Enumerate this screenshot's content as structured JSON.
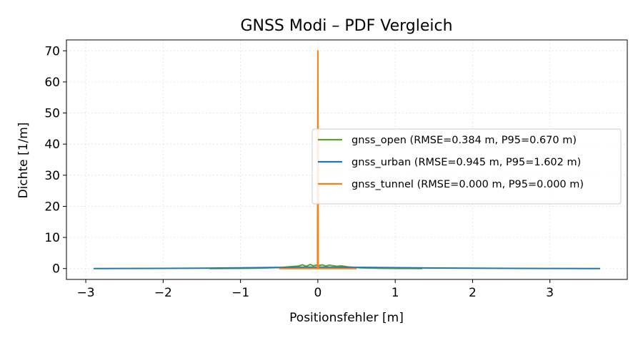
{
  "chart_data": {
    "type": "line",
    "title": "GNSS Modi – PDF Vergleich",
    "xlabel": "Positionsfehler [m]",
    "ylabel": "Dichte [1/m]",
    "xlim": [
      -3.25,
      4.0
    ],
    "ylim": [
      -3.5,
      73.5
    ],
    "xticks": [
      -3,
      -2,
      -1,
      0,
      1,
      2,
      3
    ],
    "xtick_labels": [
      "−3",
      "−2",
      "−1",
      "0",
      "1",
      "2",
      "3"
    ],
    "yticks": [
      0,
      10,
      20,
      30,
      40,
      50,
      60,
      70
    ],
    "ytick_labels": [
      "0",
      "10",
      "20",
      "30",
      "40",
      "50",
      "60",
      "70"
    ],
    "grid": true,
    "legend_position": "center-right",
    "series": [
      {
        "name": "gnss_open (RMSE=0.384 m, P95=0.670 m)",
        "color": "#5ba02a",
        "x": [
          -1.4,
          -1.2,
          -1.0,
          -0.8,
          -0.6,
          -0.45,
          -0.35,
          -0.25,
          -0.2,
          -0.15,
          -0.1,
          -0.06,
          -0.02,
          0.02,
          0.06,
          0.1,
          0.15,
          0.2,
          0.25,
          0.3,
          0.4,
          0.5,
          0.6,
          0.8,
          1.0,
          1.2,
          1.35
        ],
        "y": [
          0.0,
          0.02,
          0.05,
          0.1,
          0.25,
          0.4,
          0.6,
          0.8,
          1.2,
          0.7,
          1.3,
          0.9,
          1.1,
          1.0,
          1.2,
          0.8,
          1.1,
          0.9,
          0.7,
          0.9,
          0.5,
          0.3,
          0.2,
          0.08,
          0.03,
          0.01,
          0.0
        ]
      },
      {
        "name": "gnss_urban (RMSE=0.945 m, P95=1.602 m)",
        "color": "#1f77b4",
        "x": [
          -2.9,
          -2.5,
          -2.0,
          -1.5,
          -1.0,
          -0.5,
          -0.25,
          0.0,
          0.25,
          0.5,
          1.0,
          1.5,
          2.0,
          2.5,
          3.0,
          3.65
        ],
        "y": [
          0.0,
          0.02,
          0.05,
          0.12,
          0.22,
          0.35,
          0.42,
          0.45,
          0.42,
          0.38,
          0.28,
          0.18,
          0.1,
          0.05,
          0.02,
          0.0
        ]
      },
      {
        "name": "gnss_tunnel (RMSE=0.000 m, P95=0.000 m)",
        "color": "#ff7f0e",
        "x": [
          -0.5,
          -0.02,
          -0.005,
          0.0,
          0.005,
          0.02,
          0.5
        ],
        "y": [
          0.0,
          0.0,
          0.0,
          70.0,
          0.0,
          0.0,
          0.0
        ]
      }
    ]
  }
}
